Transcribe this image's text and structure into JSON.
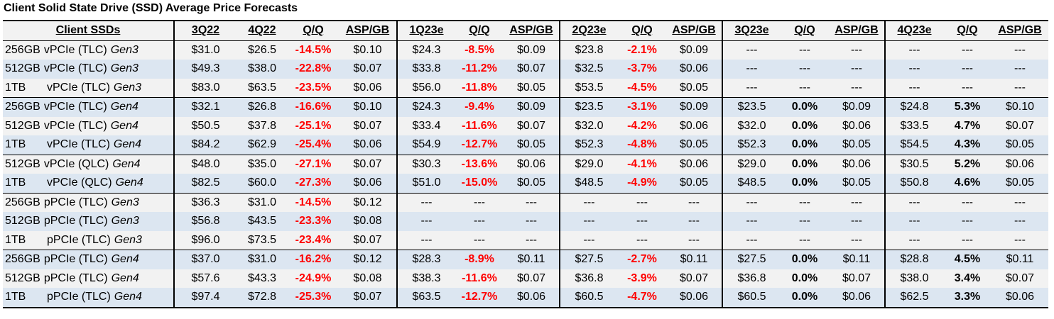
{
  "title": "Client Solid State Drive (SSD) Average Price Forecasts",
  "chart_data": {
    "type": "table",
    "title": "Client Solid State Drive (SSD) Average Price Forecasts",
    "columns": [
      "Client SSDs",
      "3Q22",
      "4Q22",
      "Q/Q",
      "ASP/GB",
      "1Q23e",
      "Q/Q",
      "ASP/GB",
      "2Q23e",
      "Q/Q",
      "ASP/GB",
      "3Q23e",
      "Q/Q",
      "ASP/GB",
      "4Q23e",
      "Q/Q",
      "ASP/GB"
    ],
    "rows": [
      {
        "cap": "256GB",
        "iface": "vPCIe (TLC)",
        "gen": "Gen3",
        "values": [
          "$31.0",
          "$26.5",
          "-14.5%",
          "$0.10",
          "$24.3",
          "-8.5%",
          "$0.09",
          "$23.8",
          "-2.1%",
          "$0.09",
          "---",
          "---",
          "---",
          "---",
          "---",
          "---"
        ]
      },
      {
        "cap": "512GB",
        "iface": "vPCIe (TLC)",
        "gen": "Gen3",
        "values": [
          "$49.3",
          "$38.0",
          "-22.8%",
          "$0.07",
          "$33.8",
          "-11.2%",
          "$0.07",
          "$32.5",
          "-3.7%",
          "$0.06",
          "---",
          "---",
          "---",
          "---",
          "---",
          "---"
        ]
      },
      {
        "cap": "1TB",
        "iface": "vPCIe (TLC)",
        "gen": "Gen3",
        "values": [
          "$83.0",
          "$63.5",
          "-23.5%",
          "$0.06",
          "$56.0",
          "-11.8%",
          "$0.05",
          "$53.5",
          "-4.5%",
          "$0.05",
          "---",
          "---",
          "---",
          "---",
          "---",
          "---"
        ]
      },
      {
        "cap": "256GB",
        "iface": "vPCIe (TLC)",
        "gen": "Gen4",
        "values": [
          "$32.1",
          "$26.8",
          "-16.6%",
          "$0.10",
          "$24.3",
          "-9.4%",
          "$0.09",
          "$23.5",
          "-3.1%",
          "$0.09",
          "$23.5",
          "0.0%",
          "$0.09",
          "$24.8",
          "5.3%",
          "$0.10"
        ]
      },
      {
        "cap": "512GB",
        "iface": "vPCIe (TLC)",
        "gen": "Gen4",
        "values": [
          "$50.5",
          "$37.8",
          "-25.1%",
          "$0.07",
          "$33.4",
          "-11.6%",
          "$0.07",
          "$32.0",
          "-4.2%",
          "$0.06",
          "$32.0",
          "0.0%",
          "$0.06",
          "$33.5",
          "4.7%",
          "$0.07"
        ]
      },
      {
        "cap": "1TB",
        "iface": "vPCIe (TLC)",
        "gen": "Gen4",
        "values": [
          "$84.2",
          "$62.9",
          "-25.4%",
          "$0.06",
          "$54.9",
          "-12.7%",
          "$0.05",
          "$52.3",
          "-4.8%",
          "$0.05",
          "$52.3",
          "0.0%",
          "$0.05",
          "$54.5",
          "4.3%",
          "$0.05"
        ]
      },
      {
        "cap": "512GB",
        "iface": "vPCIe (QLC)",
        "gen": "Gen4",
        "values": [
          "$48.0",
          "$35.0",
          "-27.1%",
          "$0.07",
          "$30.3",
          "-13.6%",
          "$0.06",
          "$29.0",
          "-4.1%",
          "$0.06",
          "$29.0",
          "0.0%",
          "$0.06",
          "$30.5",
          "5.2%",
          "$0.06"
        ]
      },
      {
        "cap": "1TB",
        "iface": "vPCIe (QLC)",
        "gen": "Gen4",
        "values": [
          "$82.5",
          "$60.0",
          "-27.3%",
          "$0.06",
          "$51.0",
          "-15.0%",
          "$0.05",
          "$48.5",
          "-4.9%",
          "$0.05",
          "$48.5",
          "0.0%",
          "$0.05",
          "$50.8",
          "4.6%",
          "$0.05"
        ]
      },
      {
        "cap": "256GB",
        "iface": "pPCIe (TLC)",
        "gen": "Gen3",
        "values": [
          "$36.3",
          "$31.0",
          "-14.5%",
          "$0.12",
          "---",
          "---",
          "---",
          "---",
          "---",
          "---",
          "---",
          "---",
          "---",
          "---",
          "---",
          "---"
        ]
      },
      {
        "cap": "512GB",
        "iface": "pPCIe (TLC)",
        "gen": "Gen3",
        "values": [
          "$56.8",
          "$43.5",
          "-23.3%",
          "$0.08",
          "---",
          "---",
          "---",
          "---",
          "---",
          "---",
          "---",
          "---",
          "---",
          "---",
          "---",
          "---"
        ]
      },
      {
        "cap": "1TB",
        "iface": "pPCIe (TLC)",
        "gen": "Gen3",
        "values": [
          "$96.0",
          "$73.5",
          "-23.4%",
          "$0.07",
          "---",
          "---",
          "---",
          "---",
          "---",
          "---",
          "---",
          "---",
          "---",
          "---",
          "---",
          "---"
        ]
      },
      {
        "cap": "256GB",
        "iface": "pPCIe (TLC)",
        "gen": "Gen4",
        "values": [
          "$37.0",
          "$31.0",
          "-16.2%",
          "$0.12",
          "$28.3",
          "-8.9%",
          "$0.11",
          "$27.5",
          "-2.7%",
          "$0.11",
          "$27.5",
          "0.0%",
          "$0.11",
          "$28.8",
          "4.5%",
          "$0.11"
        ]
      },
      {
        "cap": "512GB",
        "iface": "pPCIe (TLC)",
        "gen": "Gen4",
        "values": [
          "$57.6",
          "$43.3",
          "-24.9%",
          "$0.08",
          "$38.3",
          "-11.6%",
          "$0.07",
          "$36.8",
          "-3.9%",
          "$0.07",
          "$36.8",
          "0.0%",
          "$0.07",
          "$38.0",
          "3.4%",
          "$0.07"
        ]
      },
      {
        "cap": "1TB",
        "iface": "pPCIe (TLC)",
        "gen": "Gen4",
        "values": [
          "$97.4",
          "$72.8",
          "-25.3%",
          "$0.07",
          "$63.5",
          "-12.7%",
          "$0.06",
          "$60.5",
          "-4.7%",
          "$0.06",
          "$60.5",
          "0.0%",
          "$0.06",
          "$62.5",
          "3.3%",
          "$0.06"
        ]
      }
    ]
  }
}
